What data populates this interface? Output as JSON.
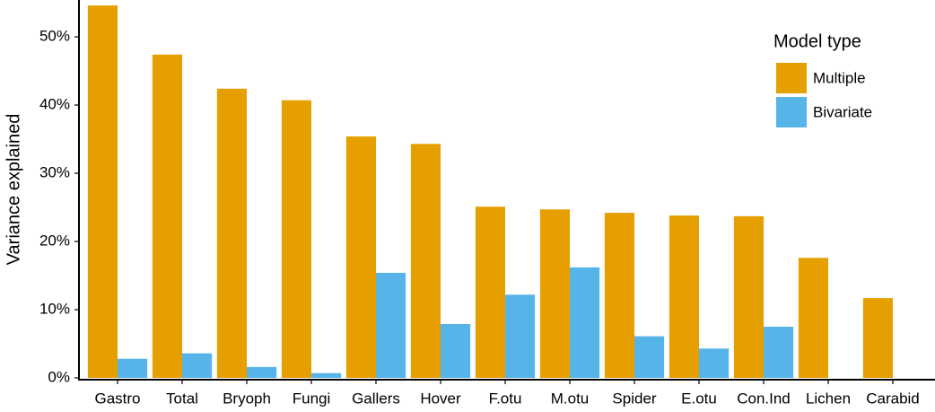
{
  "chart_data": {
    "type": "bar",
    "y_label": "Variance explained",
    "categories": [
      "Gastro",
      "Total",
      "Bryoph",
      "Fungi",
      "Gallers",
      "Hover",
      "F.otu",
      "M.otu",
      "Spider",
      "E.otu",
      "Con.Ind",
      "Lichen",
      "Carabid"
    ],
    "series": [
      {
        "name": "Multiple",
        "color": "#e69f00",
        "values": [
          54.6,
          47.4,
          42.4,
          40.7,
          35.4,
          34.3,
          25.1,
          24.7,
          24.2,
          23.8,
          23.7,
          17.6,
          11.7
        ]
      },
      {
        "name": "Bivariate",
        "color": "#56b4e9",
        "values": [
          2.8,
          3.6,
          1.6,
          0.7,
          15.4,
          7.9,
          12.2,
          16.2,
          6.1,
          4.3,
          7.5,
          0,
          0
        ]
      }
    ],
    "ylim": [
      0,
      55.4
    ],
    "yticks": [
      {
        "value": 0,
        "label": "0%"
      },
      {
        "value": 10,
        "label": "10%"
      },
      {
        "value": 20,
        "label": "20%"
      },
      {
        "value": 30,
        "label": "30%"
      },
      {
        "value": 40,
        "label": "40%"
      },
      {
        "value": 50,
        "label": "50%"
      }
    ],
    "grid": false,
    "legend_title": "Model type",
    "legend_position": "top-right"
  }
}
